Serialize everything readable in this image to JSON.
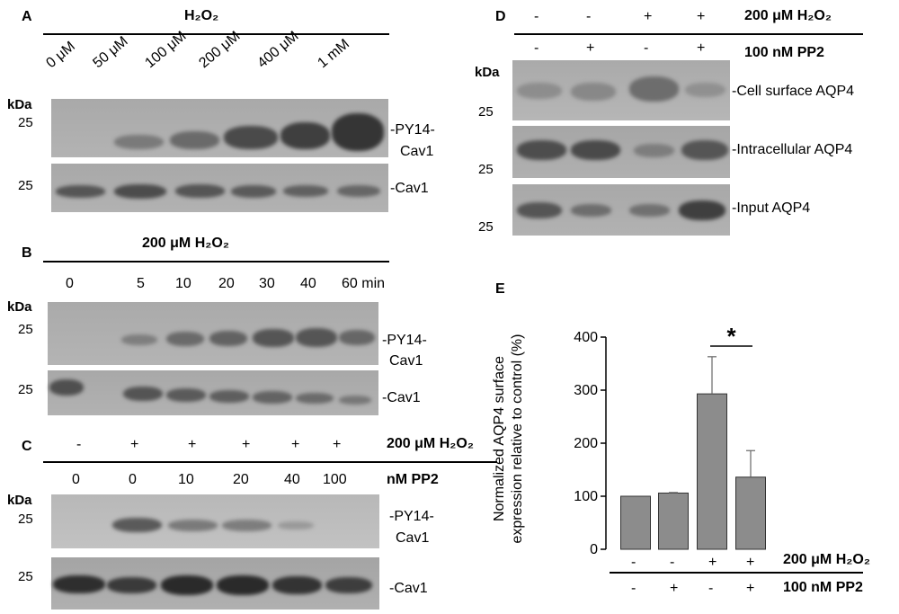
{
  "panel_labels": {
    "a": "A",
    "b": "B",
    "c": "C",
    "d": "D",
    "e": "E"
  },
  "kda": "kDa",
  "mw_25": "25",
  "panel_a": {
    "header": "H₂O₂",
    "lanes": [
      "0 μM",
      "50 μM",
      "100 μM",
      "200 μM",
      "400 μM",
      "1 mM"
    ],
    "blot1_label_line1": "-PY14-",
    "blot1_label_line2": "Cav1",
    "blot2_label": "-Cav1"
  },
  "panel_b": {
    "header": "200 μM H₂O₂",
    "lanes": [
      "0",
      "5",
      "10",
      "20",
      "30",
      "40",
      "60 min"
    ],
    "blot1_label_line1": "-PY14-",
    "blot1_label_line2": "Cav1",
    "blot2_label": "-Cav1"
  },
  "panel_c": {
    "row1": [
      "-",
      "+",
      "+",
      "+",
      "+",
      "+"
    ],
    "row1_label": "200 μM H₂O₂",
    "row2": [
      "0",
      "0",
      "10",
      "20",
      "40",
      "100"
    ],
    "row2_label": "nM PP2",
    "blot1_label_line1": "-PY14-",
    "blot1_label_line2": "Cav1",
    "blot2_label": "-Cav1"
  },
  "panel_d": {
    "row1": [
      "-",
      "-",
      "+",
      "+"
    ],
    "row1_label": "200 μM H₂O₂",
    "row2": [
      "-",
      "+",
      "-",
      "+"
    ],
    "row2_label": "100 nM PP2",
    "blot1_label": "-Cell surface AQP4",
    "blot2_label": "-Intracellular AQP4",
    "blot3_label": "-Input AQP4"
  },
  "chart_data": {
    "type": "bar",
    "ylabel_line1": "Normalized AQP4 surface",
    "ylabel_line2": "expression relative to control (%)",
    "ylim": [
      0,
      400
    ],
    "yticks": [
      "0",
      "100",
      "200",
      "300",
      "400"
    ],
    "values": [
      100,
      106,
      293,
      136
    ],
    "errors": [
      0,
      1,
      70,
      50
    ],
    "bar_color": "#8c8c8c",
    "significance": "*",
    "row1": [
      "-",
      "-",
      "+",
      "+"
    ],
    "row1_label": "200 μM H₂O₂",
    "row2": [
      "-",
      "+",
      "-",
      "+"
    ],
    "row2_label": "100 nM PP2"
  }
}
